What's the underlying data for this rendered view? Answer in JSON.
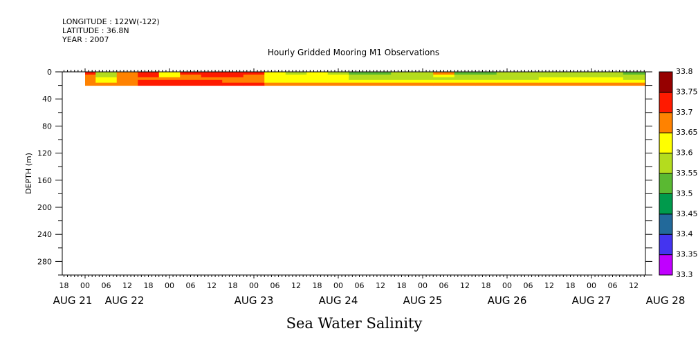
{
  "header": {
    "longitude": "LONGITUDE : 122W(-122)",
    "latitude": "LATITUDE : 36.8N",
    "year": "YEAR : 2007"
  },
  "chart_data": {
    "type": "heatmap",
    "title": "Hourly Gridded Mooring M1 Observations",
    "xlabel": "",
    "ylabel": "DEPTH (m)",
    "variable_label": "Sea Water Salinity",
    "x_hours_since_aug22_00": [
      0,
      6,
      12,
      18,
      24,
      30,
      36,
      42,
      48,
      54,
      60,
      66,
      72,
      78,
      84,
      90,
      96,
      102,
      108,
      114,
      120,
      126,
      132,
      138,
      144,
      150,
      156
    ],
    "xlim_hours": [
      -6.5,
      159.3
    ],
    "depths": [
      2,
      6,
      10,
      14,
      18
    ],
    "data_depth_range": [
      0,
      20
    ],
    "ylim": [
      300,
      0
    ],
    "y_ticks": [
      "0",
      "40",
      "80",
      "120",
      "160",
      "200",
      "240",
      "280"
    ],
    "x_hour_labels": [
      "18",
      "00",
      "06",
      "12",
      "18",
      "00",
      "06",
      "12",
      "18",
      "00",
      "06",
      "12",
      "18",
      "00",
      "06",
      "12",
      "18",
      "00",
      "06",
      "12",
      "18",
      "00",
      "06",
      "12",
      "18",
      "00",
      "06",
      "12"
    ],
    "x_hour_label_hours": [
      -6,
      0,
      6,
      12,
      18,
      24,
      30,
      36,
      42,
      48,
      54,
      60,
      66,
      72,
      78,
      84,
      90,
      96,
      102,
      108,
      114,
      120,
      126,
      132,
      138,
      144,
      150,
      156
    ],
    "x_day_labels": [
      "AUG 21",
      "AUG 22",
      "AUG 23",
      "AUG 24",
      "AUG 25",
      "AUG 26",
      "AUG 27",
      "AUG 28"
    ],
    "x_day_label_hours": [
      -10,
      6,
      48,
      72,
      96,
      120,
      144,
      168
    ],
    "values": [
      [
        33.72,
        33.67,
        33.66,
        33.67,
        33.67
      ],
      [
        33.58,
        33.58,
        33.62,
        33.64,
        33.67
      ],
      [
        33.67,
        33.66,
        33.67,
        33.68,
        33.68
      ],
      [
        33.72,
        33.71,
        33.67,
        33.72,
        33.72
      ],
      [
        33.62,
        33.63,
        33.66,
        33.72,
        33.72
      ],
      [
        33.72,
        33.68,
        33.67,
        33.72,
        33.72
      ],
      [
        33.72,
        33.72,
        33.68,
        33.72,
        33.72
      ],
      [
        33.72,
        33.72,
        33.67,
        33.67,
        33.72
      ],
      [
        33.72,
        33.68,
        33.67,
        33.67,
        33.72
      ],
      [
        33.6,
        33.62,
        33.62,
        33.64,
        33.67
      ],
      [
        33.58,
        33.62,
        33.62,
        33.64,
        33.67
      ],
      [
        33.62,
        33.62,
        33.62,
        33.63,
        33.67
      ],
      [
        33.58,
        33.6,
        33.62,
        33.63,
        33.67
      ],
      [
        33.53,
        33.57,
        33.58,
        33.62,
        33.67
      ],
      [
        33.53,
        33.57,
        33.58,
        33.62,
        33.66
      ],
      [
        33.57,
        33.58,
        33.58,
        33.62,
        33.66
      ],
      [
        33.57,
        33.58,
        33.58,
        33.62,
        33.66
      ],
      [
        33.66,
        33.62,
        33.58,
        33.62,
        33.66
      ],
      [
        33.53,
        33.57,
        33.58,
        33.62,
        33.67
      ],
      [
        33.53,
        33.57,
        33.58,
        33.62,
        33.67
      ],
      [
        33.57,
        33.58,
        33.58,
        33.62,
        33.66
      ],
      [
        33.57,
        33.58,
        33.59,
        33.62,
        33.67
      ],
      [
        33.57,
        33.58,
        33.62,
        33.64,
        33.67
      ],
      [
        33.57,
        33.58,
        33.62,
        33.64,
        33.68
      ],
      [
        33.57,
        33.58,
        33.62,
        33.64,
        33.67
      ],
      [
        33.57,
        33.58,
        33.61,
        33.63,
        33.67
      ],
      [
        33.53,
        33.55,
        33.58,
        33.62,
        33.67
      ]
    ],
    "colorbar": {
      "levels": [
        "33.3",
        "33.35",
        "33.4",
        "33.45",
        "33.5",
        "33.55",
        "33.6",
        "33.65",
        "33.7",
        "33.75",
        "33.8"
      ],
      "colors": [
        "#c000ff",
        "#4434f0",
        "#22699a",
        "#009a4c",
        "#5ab932",
        "#b4dc1e",
        "#ffff00",
        "#ff8200",
        "#ff1a00",
        "#960000"
      ]
    }
  }
}
